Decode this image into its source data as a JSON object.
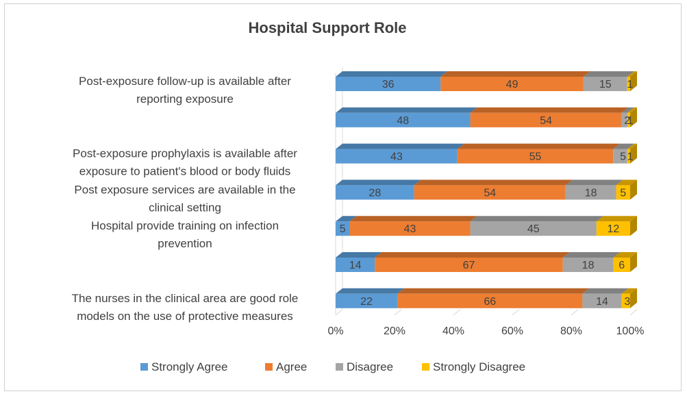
{
  "chart_data": {
    "type": "bar",
    "orientation": "horizontal",
    "stacked": "percent",
    "title": "Hospital Support Role",
    "categories": [
      [
        "Post-exposure follow-up is available after",
        "reporting exposure"
      ],
      [],
      [
        "Post-exposure prophylaxis is available after",
        "exposure to patient's blood or body fluids"
      ],
      [
        "Post exposure services are available in the",
        "clinical setting"
      ],
      [
        "Hospital provide training on infection",
        "prevention"
      ],
      [],
      [
        "The nurses in the clinical area are good role",
        "models on the use of protective measures"
      ]
    ],
    "series": [
      {
        "name": "Strongly Agree",
        "color": "#5B9BD5",
        "values": [
          36,
          48,
          43,
          28,
          5,
          14,
          22
        ]
      },
      {
        "name": "Agree",
        "color": "#ED7D31",
        "values": [
          49,
          54,
          55,
          54,
          43,
          67,
          66
        ]
      },
      {
        "name": "Disagree",
        "color": "#A5A5A5",
        "values": [
          15,
          2,
          5,
          18,
          45,
          18,
          14
        ]
      },
      {
        "name": "Strongly Disagree",
        "color": "#FFC000",
        "values": [
          1,
          1,
          1,
          5,
          12,
          6,
          3
        ]
      }
    ],
    "xticks": [
      "0%",
      "20%",
      "40%",
      "60%",
      "80%",
      "100%"
    ],
    "xlim": [
      0,
      100
    ],
    "legend_position": "bottom",
    "style": "3d"
  }
}
